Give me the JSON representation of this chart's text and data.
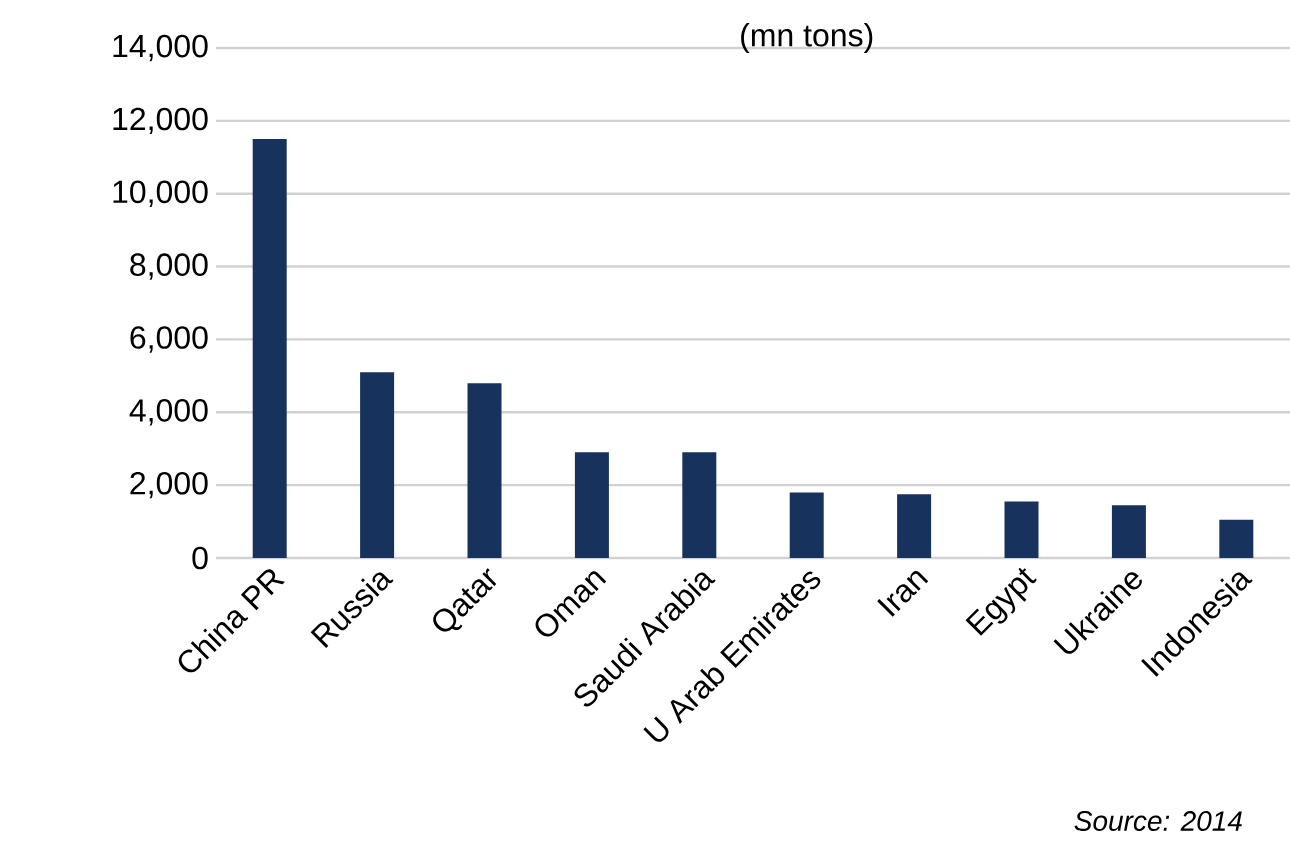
{
  "chart_data": {
    "type": "bar",
    "title": "(mn tons)",
    "categories": [
      "China PR",
      "Russia",
      "Qatar",
      "Oman",
      "Saudi Arabia",
      "U Arab Emirates",
      "Iran",
      "Egypt",
      "Ukraine",
      "Indonesia"
    ],
    "values": [
      11500,
      5100,
      4800,
      2900,
      2900,
      1800,
      1750,
      1550,
      1450,
      1050
    ],
    "color": "#17325c",
    "ylim": [
      0,
      14000
    ],
    "yticks": [
      0,
      {
        "value": 2000,
        "label": "2,000"
      },
      {
        "value": 4000,
        "label": "4,000"
      },
      {
        "value": 6000,
        "label": "6,000"
      },
      {
        "value": 8000,
        "label": "8,000"
      },
      {
        "value": 10000,
        "label": "10,000"
      },
      {
        "value": 12000,
        "label": "12,000"
      },
      {
        "value": 14000,
        "label": "14,000"
      }
    ],
    "grid": "y",
    "annotations": [
      "Source: 2014"
    ]
  }
}
